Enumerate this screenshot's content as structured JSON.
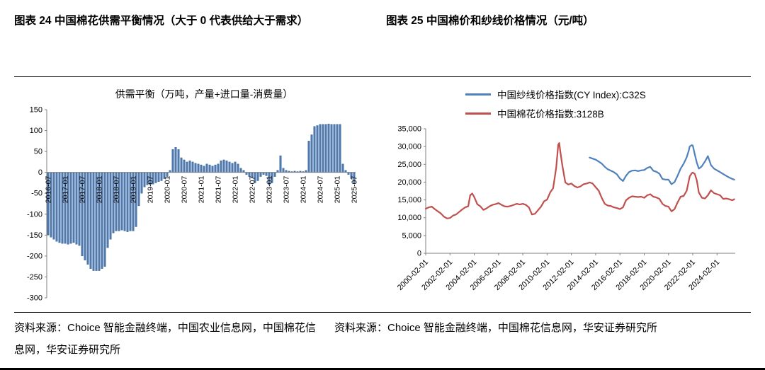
{
  "figures": {
    "left": {
      "title": "图表 24 中国棉花供需平衡情况（大于 0 代表供给大于需求）",
      "source": "资料来源：Choice 智能金融终端，中国农业信息网，中国棉花信息网，华安证券研究所"
    },
    "right": {
      "title": "图表 25 中国棉价和纱线价格情况（元/吨）",
      "source": "资料来源：Choice 智能金融终端，中国棉花信息网，华安证券研究所"
    }
  },
  "chart_data": [
    {
      "type": "bar",
      "title": "供需平衡（万吨，产量+进口量-消费量）",
      "bar_color": "#4C79B5",
      "bar_edge_color": "#1F4E79",
      "start_month": "2016-07",
      "ylim": [
        -300,
        150
      ],
      "y_ticks": [
        150,
        100,
        50,
        0,
        -50,
        -100,
        -150,
        -200,
        -250,
        -300
      ],
      "x_tick_indices": [
        0,
        6,
        12,
        18,
        24,
        30,
        36,
        42,
        48,
        54,
        60,
        66,
        72,
        78,
        84,
        90,
        96,
        102,
        108
      ],
      "x_tick_labels": [
        "2016-07",
        "2017-01",
        "2017-07",
        "2018-01",
        "2018-07",
        "2019-01",
        "2019-07",
        "2020-01",
        "2020-07",
        "2021-01",
        "2021-07",
        "2022-01",
        "2022-07",
        "2023-01",
        "2023-07",
        "2024-01",
        "2024-07",
        "2025-01",
        "2025-07"
      ],
      "values": [
        -150,
        -155,
        -160,
        -165,
        -168,
        -170,
        -170,
        -172,
        -170,
        -168,
        -172,
        -175,
        -200,
        -210,
        -220,
        -230,
        -235,
        -235,
        -235,
        -230,
        -225,
        -180,
        -160,
        -145,
        -140,
        -140,
        -138,
        -140,
        -142,
        -140,
        -140,
        -130,
        -80,
        -50,
        -35,
        -30,
        -30,
        -28,
        -25,
        -22,
        -20,
        -15,
        -10,
        5,
        55,
        60,
        55,
        35,
        30,
        25,
        28,
        25,
        22,
        20,
        18,
        15,
        20,
        18,
        15,
        18,
        20,
        28,
        30,
        28,
        25,
        22,
        25,
        20,
        10,
        5,
        -5,
        -10,
        -12,
        -25,
        -20,
        -10,
        -5,
        -8,
        -30,
        -25,
        -10,
        5,
        40,
        10,
        5,
        3,
        2,
        3,
        2,
        3,
        2,
        5,
        75,
        90,
        110,
        112,
        115,
        115,
        115,
        116,
        115,
        115,
        115,
        115,
        20,
        5,
        -5,
        -15,
        -25
      ]
    },
    {
      "type": "line",
      "ylim": [
        0,
        35000
      ],
      "y_ticks": [
        0,
        5000,
        10000,
        15000,
        20000,
        25000,
        30000,
        35000
      ],
      "y_tick_labels": [
        "0",
        "5,000",
        "10,000",
        "15,000",
        "20,000",
        "25,000",
        "30,000",
        "35,000"
      ],
      "x_max": 306,
      "x_tick_positions": [
        0,
        24,
        48,
        72,
        96,
        120,
        144,
        168,
        192,
        216,
        240,
        264,
        288
      ],
      "x_tick_labels": [
        "2000-02-01",
        "2002-02-01",
        "2004-02-01",
        "2006-02-01",
        "2008-02-01",
        "2010-02-01",
        "2012-02-01",
        "2014-02-01",
        "2016-02-01",
        "2018-02-01",
        "2020-02-01",
        "2022-02-01",
        "2024-02-01"
      ],
      "series": [
        {
          "name": "中国纱线价格指数(CY Index):C32S",
          "color": "#4F81BD",
          "points": [
            [
              162,
              26900
            ],
            [
              165,
              26600
            ],
            [
              168,
              26300
            ],
            [
              171,
              25800
            ],
            [
              174,
              25200
            ],
            [
              177,
              24300
            ],
            [
              180,
              23600
            ],
            [
              183,
              23200
            ],
            [
              186,
              22800
            ],
            [
              189,
              22200
            ],
            [
              192,
              21000
            ],
            [
              195,
              20300
            ],
            [
              198,
              21800
            ],
            [
              201,
              22800
            ],
            [
              204,
              23200
            ],
            [
              207,
              23300
            ],
            [
              210,
              23100
            ],
            [
              213,
              23300
            ],
            [
              216,
              23400
            ],
            [
              219,
              24000
            ],
            [
              222,
              24300
            ],
            [
              225,
              23200
            ],
            [
              228,
              22900
            ],
            [
              231,
              22400
            ],
            [
              234,
              20900
            ],
            [
              237,
              20700
            ],
            [
              240,
              20700
            ],
            [
              243,
              19400
            ],
            [
              246,
              20000
            ],
            [
              249,
              21800
            ],
            [
              252,
              23800
            ],
            [
              255,
              25200
            ],
            [
              258,
              27000
            ],
            [
              260,
              28800
            ],
            [
              261,
              30000
            ],
            [
              263,
              30400
            ],
            [
              264,
              30300
            ],
            [
              266,
              27800
            ],
            [
              268,
              25500
            ],
            [
              270,
              23800
            ],
            [
              272,
              24200
            ],
            [
              273,
              24500
            ],
            [
              276,
              25800
            ],
            [
              279,
              27300
            ],
            [
              282,
              24800
            ],
            [
              285,
              23800
            ],
            [
              288,
              23300
            ],
            [
              291,
              22800
            ],
            [
              294,
              22300
            ],
            [
              297,
              21800
            ],
            [
              300,
              21300
            ],
            [
              303,
              20900
            ],
            [
              305,
              20700
            ]
          ]
        },
        {
          "name": "中国棉花价格指数:3128B",
          "color": "#C0504D",
          "points": [
            [
              0,
              12500
            ],
            [
              3,
              12900
            ],
            [
              6,
              13100
            ],
            [
              9,
              12400
            ],
            [
              12,
              11800
            ],
            [
              15,
              11200
            ],
            [
              18,
              10300
            ],
            [
              21,
              9800
            ],
            [
              24,
              9900
            ],
            [
              27,
              10600
            ],
            [
              30,
              10900
            ],
            [
              33,
              11600
            ],
            [
              36,
              12300
            ],
            [
              39,
              12900
            ],
            [
              42,
              13200
            ],
            [
              44,
              16300
            ],
            [
              46,
              16800
            ],
            [
              48,
              15800
            ],
            [
              51,
              13800
            ],
            [
              54,
              13200
            ],
            [
              57,
              12200
            ],
            [
              60,
              12600
            ],
            [
              63,
              13200
            ],
            [
              66,
              13600
            ],
            [
              69,
              13800
            ],
            [
              72,
              14100
            ],
            [
              75,
              13600
            ],
            [
              78,
              13200
            ],
            [
              81,
              13100
            ],
            [
              84,
              13300
            ],
            [
              87,
              13600
            ],
            [
              90,
              13900
            ],
            [
              93,
              13700
            ],
            [
              96,
              13900
            ],
            [
              99,
              13600
            ],
            [
              102,
              12900
            ],
            [
              105,
              10900
            ],
            [
              108,
              11100
            ],
            [
              111,
              12100
            ],
            [
              114,
              13100
            ],
            [
              117,
              14600
            ],
            [
              120,
              15100
            ],
            [
              123,
              17100
            ],
            [
              126,
              18300
            ],
            [
              129,
              24000
            ],
            [
              131,
              30500
            ],
            [
              132,
              31000
            ],
            [
              133,
              28800
            ],
            [
              135,
              24800
            ],
            [
              138,
              19900
            ],
            [
              141,
              19300
            ],
            [
              144,
              19600
            ],
            [
              147,
              18900
            ],
            [
              150,
              18500
            ],
            [
              153,
              18800
            ],
            [
              156,
              19400
            ],
            [
              159,
              19600
            ],
            [
              162,
              19900
            ],
            [
              165,
              19600
            ],
            [
              168,
              18600
            ],
            [
              171,
              17600
            ],
            [
              174,
              15600
            ],
            [
              177,
              13900
            ],
            [
              180,
              13400
            ],
            [
              183,
              13300
            ],
            [
              186,
              12900
            ],
            [
              189,
              12700
            ],
            [
              192,
              12400
            ],
            [
              195,
              12900
            ],
            [
              198,
              14900
            ],
            [
              201,
              15600
            ],
            [
              204,
              16000
            ],
            [
              207,
              15900
            ],
            [
              210,
              15800
            ],
            [
              213,
              15900
            ],
            [
              216,
              15600
            ],
            [
              219,
              16300
            ],
            [
              222,
              16600
            ],
            [
              225,
              15900
            ],
            [
              228,
              15700
            ],
            [
              231,
              15300
            ],
            [
              234,
              13900
            ],
            [
              237,
              13300
            ],
            [
              240,
              13100
            ],
            [
              243,
              11800
            ],
            [
              246,
              12400
            ],
            [
              249,
              14300
            ],
            [
              252,
              15900
            ],
            [
              255,
              16100
            ],
            [
              258,
              17600
            ],
            [
              261,
              21600
            ],
            [
              263,
              22500
            ],
            [
              264,
              22700
            ],
            [
              266,
              22300
            ],
            [
              268,
              20500
            ],
            [
              270,
              17100
            ],
            [
              273,
              15600
            ],
            [
              276,
              15400
            ],
            [
              279,
              16300
            ],
            [
              282,
              17700
            ],
            [
              285,
              16900
            ],
            [
              288,
              16600
            ],
            [
              291,
              16300
            ],
            [
              294,
              15300
            ],
            [
              297,
              15400
            ],
            [
              300,
              15200
            ],
            [
              303,
              14900
            ],
            [
              305,
              15200
            ]
          ]
        }
      ]
    }
  ]
}
